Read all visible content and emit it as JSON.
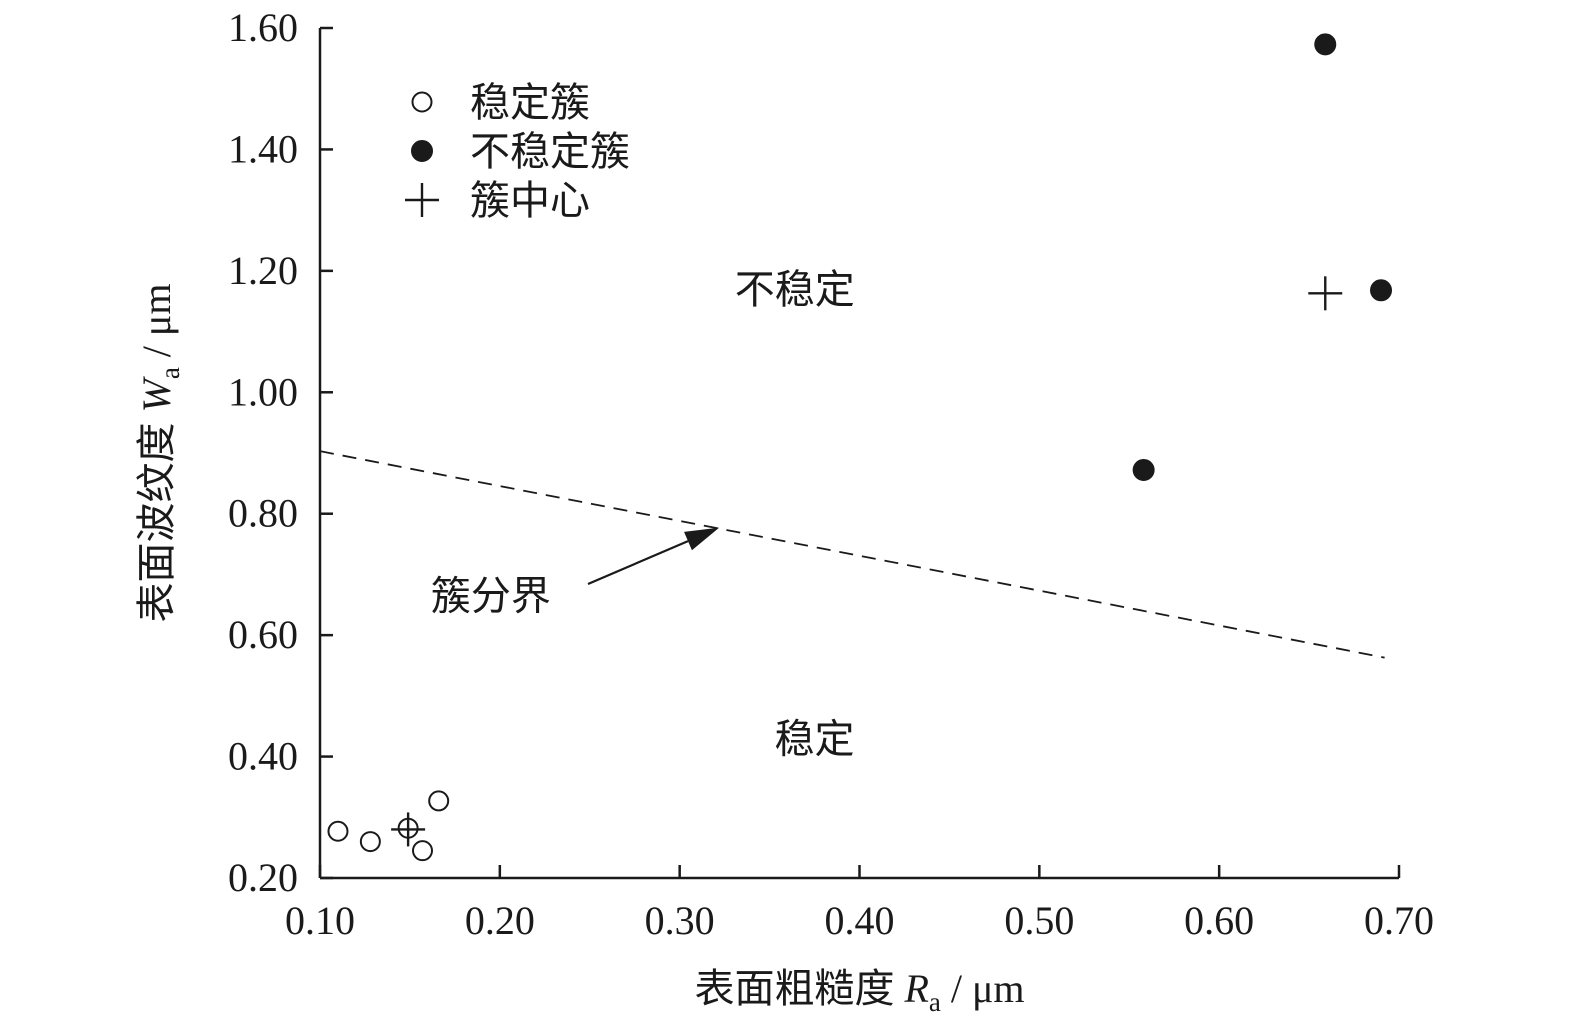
{
  "chart_data": {
    "type": "scatter",
    "x_axis": {
      "label_main": "表面粗糙度",
      "label_var": "R",
      "label_sub": "a",
      "label_unit": " / μm",
      "lim": [
        0.1,
        0.7
      ],
      "ticks": [
        0.1,
        0.2,
        0.3,
        0.4,
        0.5,
        0.6,
        0.7
      ],
      "tick_labels": [
        "0.10",
        "0.20",
        "0.30",
        "0.40",
        "0.50",
        "0.60",
        "0.70"
      ]
    },
    "y_axis": {
      "label_main": "表面波纹度",
      "label_var": "W",
      "label_sub": "a",
      "label_unit": " / μm",
      "lim": [
        0.2,
        1.6
      ],
      "ticks": [
        0.2,
        0.4,
        0.6,
        0.8,
        1.0,
        1.2,
        1.4,
        1.6
      ],
      "tick_labels": [
        "0.20",
        "0.40",
        "0.60",
        "0.80",
        "1.00",
        "1.20",
        "1.40",
        "1.60"
      ]
    },
    "grid": false,
    "legend_position": "top-left",
    "legend": [
      {
        "marker": "open-circle",
        "label": "稳定簇"
      },
      {
        "marker": "filled-circle",
        "label": "不稳定簇"
      },
      {
        "marker": "plus",
        "label": "簇中心"
      }
    ],
    "series": [
      {
        "name": "稳定簇",
        "marker": "open-circle",
        "points": [
          {
            "x": 0.11,
            "y": 0.277
          },
          {
            "x": 0.128,
            "y": 0.26
          },
          {
            "x": 0.149,
            "y": 0.282
          },
          {
            "x": 0.157,
            "y": 0.245
          },
          {
            "x": 0.166,
            "y": 0.327
          }
        ]
      },
      {
        "name": "不稳定簇",
        "marker": "filled-circle",
        "points": [
          {
            "x": 0.558,
            "y": 0.872
          },
          {
            "x": 0.659,
            "y": 1.573
          },
          {
            "x": 0.69,
            "y": 1.168
          }
        ]
      },
      {
        "name": "簇中心",
        "marker": "plus",
        "points": [
          {
            "x": 0.149,
            "y": 0.28
          },
          {
            "x": 0.659,
            "y": 1.163
          }
        ]
      }
    ],
    "boundary": {
      "label": "簇分界",
      "style": "dashed",
      "from": {
        "x": 0.1,
        "y": 0.903
      },
      "to": {
        "x": 0.692,
        "y": 0.563
      },
      "arrow_target": {
        "x": 0.322,
        "y": 0.777
      },
      "label_position": {
        "x": 0.195,
        "y": 0.665
      }
    },
    "regions": [
      {
        "label": "不稳定",
        "x": 0.364,
        "y": 1.17
      },
      {
        "label": "稳定",
        "x": 0.375,
        "y": 0.43
      }
    ],
    "colors": {
      "ink": "#1a1a1a",
      "background": "#ffffff"
    }
  }
}
